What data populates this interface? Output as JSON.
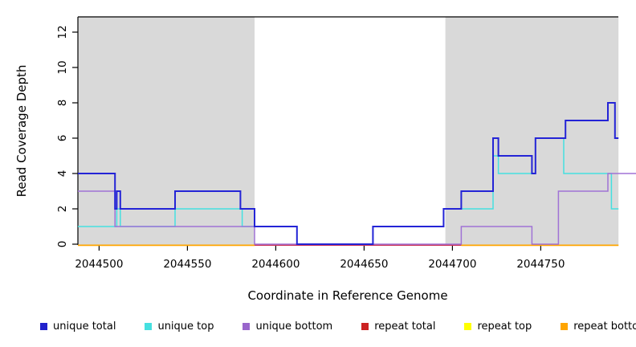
{
  "chart_data": {
    "type": "line",
    "subtype": "step-coverage",
    "title": "",
    "xlabel": "Coordinate in Reference Genome",
    "ylabel": "Read Coverage Depth",
    "xlim": [
      2044488,
      2044794
    ],
    "ylim": [
      0,
      13
    ],
    "grid": false,
    "legend_position": "bottom",
    "x_ticks": [
      2044500,
      2044550,
      2044600,
      2044650,
      2044700,
      2044750
    ],
    "y_ticks": [
      0,
      2,
      4,
      6,
      8,
      10,
      12
    ],
    "shaded_region_color": "#d9d9d9",
    "shaded_regions": [
      {
        "from": 2044488,
        "to": 2044588
      },
      {
        "from": 2044696,
        "to": 2044794
      }
    ],
    "series": [
      {
        "name": "repeat top",
        "color": "#ffff00",
        "width": 1.5,
        "segments": [
          [
            [
              2044488,
              0
            ],
            [
              2044794,
              0
            ]
          ]
        ]
      },
      {
        "name": "repeat total",
        "color": "#cc3355",
        "width": 1.5,
        "segments": [
          [
            [
              2044588,
              0
            ],
            [
              2044705,
              0
            ]
          ]
        ]
      },
      {
        "name": "repeat bottom",
        "color": "#ffa500",
        "width": 1.8,
        "segments": [
          [
            [
              2044488,
              0
            ],
            [
              2044588,
              0
            ]
          ],
          [
            [
              2044705,
              0
            ],
            [
              2044794,
              0
            ]
          ]
        ]
      },
      {
        "name": "unique top",
        "color": "#45e0e0",
        "width": 1.5,
        "segments": [
          [
            [
              2044488,
              1
            ],
            [
              2044510,
              2
            ],
            [
              2044512,
              1
            ],
            [
              2044543,
              2
            ],
            [
              2044581,
              1
            ],
            [
              2044612,
              0
            ],
            [
              2044655,
              1
            ],
            [
              2044695,
              2
            ],
            [
              2044723,
              5
            ],
            [
              2044726,
              4
            ],
            [
              2044747,
              6
            ],
            [
              2044763,
              4
            ],
            [
              2044790,
              2
            ],
            [
              2044794,
              2
            ]
          ]
        ]
      },
      {
        "name": "unique bottom",
        "color": "#a072d6",
        "width": 1.5,
        "segments": [
          [
            [
              2044488,
              3
            ],
            [
              2044509,
              1
            ],
            [
              2044588,
              0
            ],
            [
              2044705,
              1
            ],
            [
              2044745,
              0
            ],
            [
              2044760,
              3
            ],
            [
              2044788,
              4
            ],
            [
              2044804,
              4
            ]
          ]
        ]
      },
      {
        "name": "unique total",
        "color": "#2424d6",
        "width": 2,
        "segments": [
          [
            [
              2044488,
              4
            ],
            [
              2044509,
              2
            ],
            [
              2044510,
              3
            ],
            [
              2044512,
              2
            ],
            [
              2044543,
              3
            ],
            [
              2044580,
              2
            ],
            [
              2044588,
              1
            ],
            [
              2044612,
              0
            ],
            [
              2044655,
              1
            ],
            [
              2044695,
              2
            ],
            [
              2044705,
              3
            ],
            [
              2044723,
              6
            ],
            [
              2044726,
              5
            ],
            [
              2044745,
              4
            ],
            [
              2044747,
              6
            ],
            [
              2044764,
              7
            ],
            [
              2044788,
              8
            ],
            [
              2044792,
              6
            ],
            [
              2044794,
              6
            ]
          ]
        ]
      }
    ],
    "legend": [
      {
        "label": "unique total",
        "color": "#2222cc"
      },
      {
        "label": "unique top",
        "color": "#45e0e0"
      },
      {
        "label": "unique bottom",
        "color": "#9966cc"
      },
      {
        "label": "repeat total",
        "color": "#cc2222"
      },
      {
        "label": "repeat top",
        "color": "#ffff00"
      },
      {
        "label": "repeat bottom",
        "color": "#ffa500"
      }
    ]
  }
}
